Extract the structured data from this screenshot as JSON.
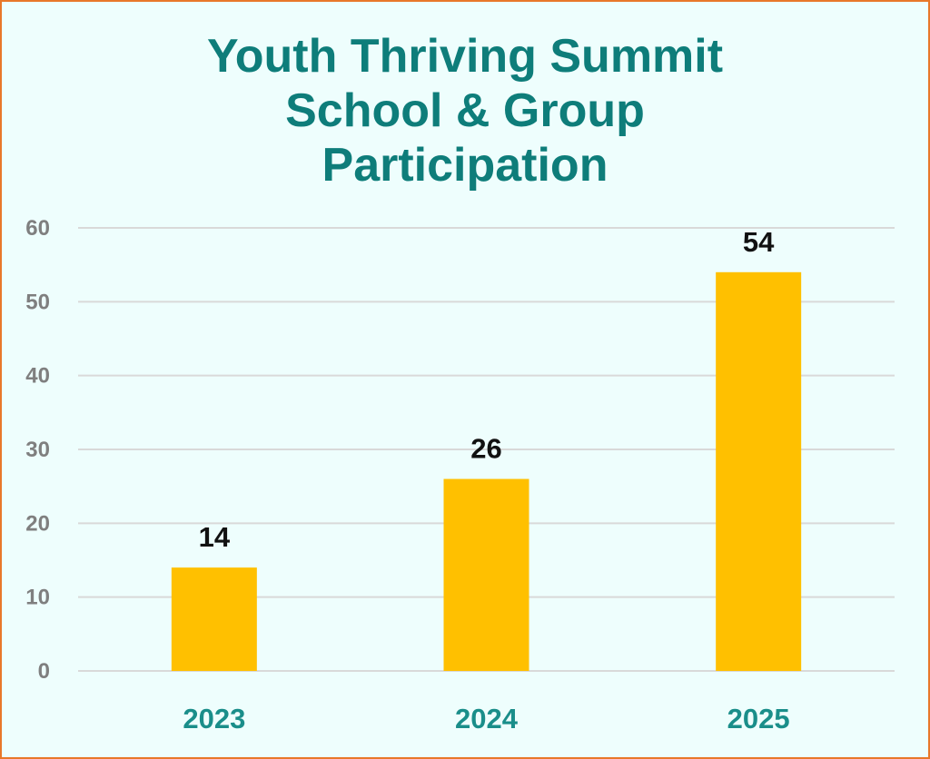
{
  "chart_data": {
    "type": "bar",
    "title_lines": [
      "Youth Thriving Summit",
      "School & Group",
      "Participation"
    ],
    "categories": [
      "2023",
      "2024",
      "2025"
    ],
    "values": [
      14,
      26,
      54
    ],
    "ylim": [
      0,
      60
    ],
    "yticks": [
      "0",
      "10",
      "20",
      "30",
      "40",
      "50",
      "60"
    ],
    "data_labels": [
      "14",
      "26",
      "54"
    ],
    "grid": true,
    "legend": "none",
    "colors": {
      "bar": "#FFC000",
      "title": "#0E7D7A",
      "x_tick": "#1A8E8A",
      "y_tick": "#7F7F7F",
      "grid": "#D9D9D9",
      "background": "#EEFEFD",
      "border": "#E8782A"
    }
  }
}
